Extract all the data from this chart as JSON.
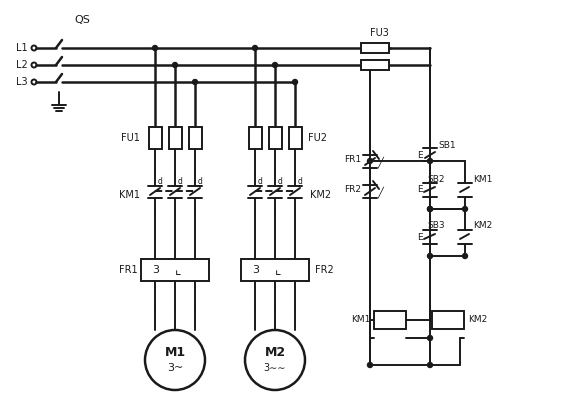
{
  "bg_color": "#ffffff",
  "line_color": "#1a1a1a",
  "lw_main": 1.8,
  "lw_ctrl": 1.4,
  "figsize": [
    5.64,
    4.0
  ],
  "dpi": 100,
  "labels": {
    "QS": "QS",
    "L1": "L1",
    "L2": "L2",
    "L3": "L3",
    "FU1": "FU1",
    "FU2": "FU2",
    "FU3": "FU3",
    "KM1": "KM1",
    "KM2": "KM2",
    "FR1": "FR1",
    "FR2": "FR2",
    "SB1": "SB1",
    "SB2": "SB2",
    "SB3": "SB3",
    "M1": "M1",
    "M2": "M2",
    "M1sub": "3~",
    "M2sub": "3∼∼",
    "FR1box": "3 ⌞",
    "FR2box": "3 ⌞",
    "d": "d",
    "E": "E"
  }
}
